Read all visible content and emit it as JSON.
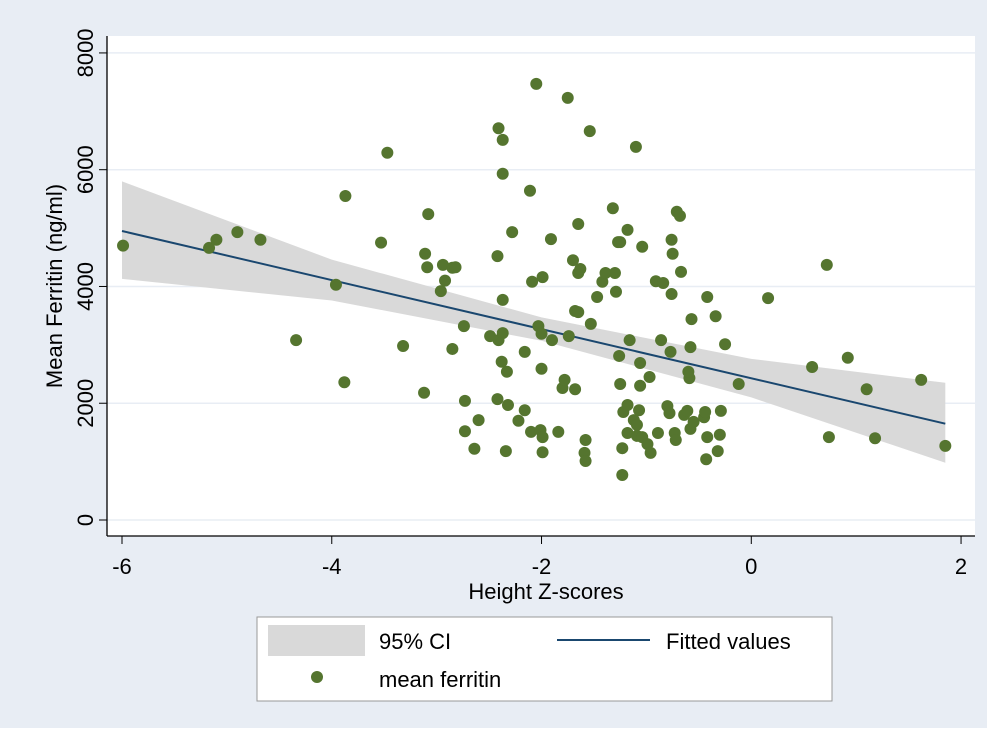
{
  "chart_data": {
    "type": "scatter",
    "xlabel": "Height Z-scores",
    "ylabel": "Mean Ferritin (ng/ml)",
    "xlim": [
      -6.143,
      2.133
    ],
    "ylim": [
      -274,
      8290
    ],
    "xticks": [
      -6,
      -4,
      -2,
      0,
      2
    ],
    "yticks": [
      0,
      2000,
      4000,
      6000,
      8000
    ],
    "grid": true,
    "series": [
      {
        "name": "95% CI",
        "color": "#d9d9d9",
        "x": [
          -6,
          -4,
          -2,
          0,
          1.85
        ],
        "upper": [
          5800,
          4460,
          3470,
          2760,
          2350
        ],
        "lower": [
          4130,
          3760,
          3070,
          2100,
          980
        ]
      },
      {
        "name": "Fitted values",
        "color": "#1a476f",
        "x": [
          -6,
          1.85
        ],
        "values": [
          4950,
          1650
        ]
      },
      {
        "name": "mean ferritin",
        "color": "#55752f",
        "x": [
          -5.99,
          -5.17,
          -5.1,
          -4.9,
          -4.68,
          -4.34,
          -3.96,
          -3.88,
          -3.87,
          -3.53,
          -3.47,
          -3.32,
          -3.12,
          -3.11,
          -3.08,
          -3.09,
          -2.96,
          -2.94,
          -2.92,
          -2.85,
          -2.82,
          -2.85,
          -2.74,
          -2.73,
          -2.73,
          -2.64,
          -2.6,
          -2.49,
          -2.42,
          -2.42,
          -2.41,
          -2.41,
          -2.37,
          -2.37,
          -2.37,
          -2.37,
          -2.38,
          -2.34,
          -2.33,
          -2.32,
          -2.28,
          -2.22,
          -2.16,
          -2.16,
          -2.11,
          -2.09,
          -2.1,
          -2.05,
          -2.03,
          -2.01,
          -2.0,
          -2.0,
          -1.99,
          -1.99,
          -1.99,
          -1.91,
          -1.9,
          -1.84,
          -1.8,
          -1.78,
          -1.75,
          -1.74,
          -1.7,
          -1.68,
          -1.68,
          -1.65,
          -1.65,
          -1.65,
          -1.63,
          -1.58,
          -1.59,
          -1.58,
          -1.53,
          -1.54,
          -1.47,
          -1.42,
          -1.39,
          -1.32,
          -1.3,
          -1.29,
          -1.26,
          -1.27,
          -1.25,
          -1.25,
          -1.23,
          -1.23,
          -1.22,
          -1.18,
          -1.18,
          -1.18,
          -1.16,
          -1.12,
          -1.1,
          -1.09,
          -1.09,
          -1.07,
          -1.06,
          -1.04,
          -1.06,
          -1.04,
          -0.99,
          -0.97,
          -0.96,
          -0.91,
          -0.89,
          -0.86,
          -0.84,
          -0.8,
          -0.78,
          -0.77,
          -0.76,
          -0.76,
          -0.75,
          -0.73,
          -0.72,
          -0.71,
          -0.68,
          -0.67,
          -0.64,
          -0.61,
          -0.59,
          -0.6,
          -0.57,
          -0.58,
          -0.58,
          -0.55,
          -0.45,
          -0.43,
          -0.42,
          -0.42,
          -0.44,
          -0.34,
          -0.32,
          -0.3,
          -0.29,
          -0.25,
          -0.12,
          0.16,
          0.58,
          0.72,
          0.74,
          0.92,
          1.1,
          1.18,
          1.62,
          1.85
        ],
        "values": [
          4700,
          4660,
          4800,
          4930,
          4800,
          3080,
          4030,
          2360,
          5550,
          4750,
          6290,
          2980,
          2180,
          4560,
          5240,
          4330,
          3920,
          4370,
          4100,
          4320,
          4330,
          2930,
          3320,
          2040,
          1520,
          1220,
          1710,
          3150,
          4520,
          2070,
          6710,
          3080,
          6510,
          5930,
          3770,
          3200,
          2710,
          1180,
          2540,
          1970,
          4930,
          1700,
          2880,
          1880,
          5640,
          4080,
          1510,
          7470,
          3320,
          1540,
          3190,
          2590,
          4160,
          1160,
          1420,
          4810,
          3080,
          1510,
          2260,
          2400,
          7230,
          3150,
          4450,
          3580,
          2240,
          3560,
          4230,
          5070,
          4300,
          1370,
          1150,
          1010,
          3360,
          6660,
          3820,
          4080,
          4230,
          5340,
          4230,
          3910,
          2810,
          4760,
          4760,
          2330,
          1230,
          770,
          1850,
          4970,
          1490,
          1970,
          3080,
          1710,
          6390,
          1440,
          1630,
          1880,
          2300,
          4680,
          2690,
          1420,
          1300,
          2450,
          1150,
          4090,
          1490,
          3080,
          4060,
          1950,
          1830,
          2880,
          4800,
          3870,
          4560,
          1490,
          1370,
          5280,
          5210,
          4250,
          1800,
          1870,
          2430,
          2540,
          3440,
          2960,
          1560,
          1680,
          1760,
          1040,
          3820,
          1420,
          1850,
          3490,
          1180,
          1460,
          1870,
          3010,
          2330,
          3800,
          2620,
          4370,
          1420,
          2780,
          2240,
          1400,
          2400,
          1270
        ]
      }
    ]
  }
}
